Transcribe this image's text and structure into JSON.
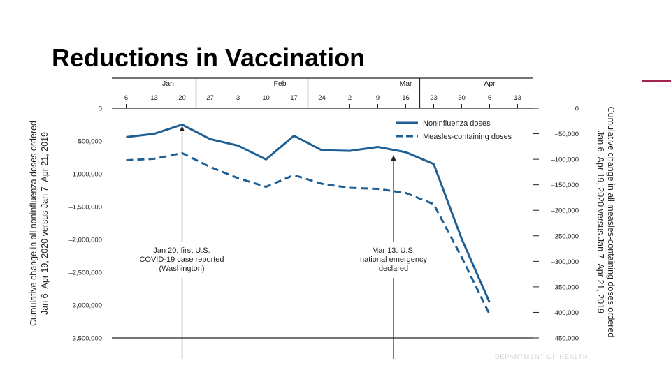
{
  "slide": {
    "title": "Reductions in Vaccination",
    "footer": "DEPARTMENT OF HEALTH",
    "accent_color": "#a3224f"
  },
  "chart_data": {
    "type": "line",
    "title": "Reductions in Vaccination",
    "months": [
      {
        "label": "Jan",
        "start": 0,
        "end": 3
      },
      {
        "label": "Feb",
        "start": 3,
        "end": 7
      },
      {
        "label": "Mar",
        "start": 7,
        "end": 11
      },
      {
        "label": "Apr",
        "start": 11,
        "end": 13
      }
    ],
    "month_dividers": [
      3,
      7,
      11
    ],
    "categories": [
      "6",
      "13",
      "20",
      "27",
      "3",
      "10",
      "17",
      "24",
      "2",
      "9",
      "16",
      "23",
      "30",
      "6",
      "13"
    ],
    "y_left": {
      "label_line1": "Cumulative change in all noninfluenza doses ordered",
      "label_line2": "Jan 6–Apr 19, 2020 versus Jan 7–Apr 21, 2019",
      "ticks": [
        0,
        -500000,
        -1000000,
        -1500000,
        -2000000,
        -2500000,
        -3000000,
        -3500000
      ],
      "tick_labels": [
        "0",
        "–500,000",
        "–1,000,000",
        "–1,500,000",
        "–2,000,000",
        "–2,500,000",
        "–3,000,000",
        "–3,500,000"
      ],
      "range": [
        -3500000,
        0
      ]
    },
    "y_right": {
      "label_line1": "Cumulative change in all measles-containing doses ordered",
      "label_line2": "Jan 6–Apr 19, 2020 versus Jan 7–Apr 21, 2019",
      "ticks": [
        0,
        -50000,
        -100000,
        -150000,
        -200000,
        -250000,
        -300000,
        -350000,
        -400000,
        -450000
      ],
      "tick_labels": [
        "0",
        "–50,000",
        "–100,000",
        "–150,000",
        "–200,000",
        "–250,000",
        "–300,000",
        "–350,000",
        "–400,000",
        "–450,000"
      ],
      "range": [
        -450000,
        0
      ]
    },
    "series": [
      {
        "name": "Noninfluenza doses",
        "axis": "left",
        "style": "solid",
        "color": "#1f5f94",
        "x": [
          0,
          1,
          2,
          3,
          4,
          5,
          6,
          7,
          8,
          9,
          10,
          11,
          12,
          13
        ],
        "values": [
          -440000,
          -390000,
          -250000,
          -470000,
          -570000,
          -780000,
          -420000,
          -640000,
          -650000,
          -590000,
          -670000,
          -850000,
          -1990000,
          -2960000
        ]
      },
      {
        "name": "Measles-containing doses",
        "axis": "right",
        "style": "dashed",
        "color": "#1f5f94",
        "x": [
          0,
          1,
          2,
          3,
          4,
          5,
          6,
          7,
          8,
          9,
          10,
          11,
          12,
          13
        ],
        "values": [
          -102000,
          -99000,
          -88000,
          -115000,
          -137000,
          -154000,
          -131000,
          -148000,
          -156000,
          -158000,
          -166000,
          -188000,
          -292000,
          -404000
        ]
      }
    ],
    "annotations": [
      {
        "name": "covid-first-case",
        "x": 2,
        "lines": [
          "Jan 20: first U.S.",
          "COVID-19 case reported",
          "(Washington)"
        ]
      },
      {
        "name": "national-emergency",
        "x": 9.57,
        "lines": [
          "Mar 13: U.S.",
          "national emergency",
          "declared"
        ]
      }
    ],
    "legend_position": "top-right"
  }
}
